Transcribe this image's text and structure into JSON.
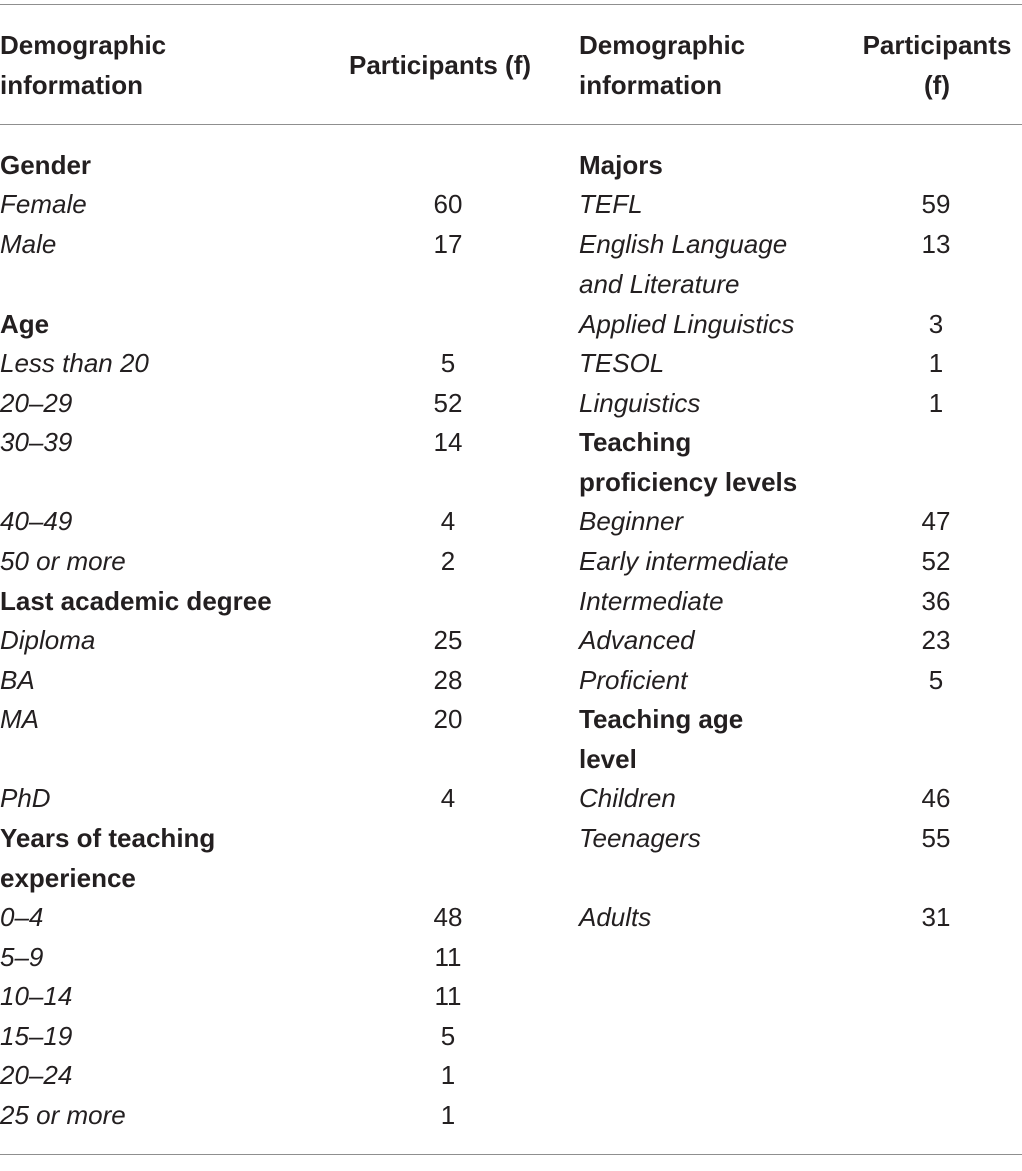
{
  "header": {
    "left_col1": [
      "Demographic",
      "information"
    ],
    "left_col2": "Participants (f)",
    "right_col1": [
      "Demographic",
      "information"
    ],
    "right_col2": [
      "Participants",
      "(f)"
    ]
  },
  "left": {
    "gender": {
      "title": "Gender",
      "rows": [
        {
          "label": "Female",
          "value": "60"
        },
        {
          "label": "Male",
          "value": "17"
        }
      ]
    },
    "age": {
      "title": "Age",
      "rows": [
        {
          "label": "Less than 20",
          "value": "5"
        },
        {
          "label": "20–29",
          "value": "52"
        },
        {
          "label": "30–39",
          "value": "14"
        },
        {
          "label": "40–49",
          "value": "4"
        },
        {
          "label": "50 or more",
          "value": "2"
        }
      ]
    },
    "degree": {
      "title": "Last academic degree",
      "rows": [
        {
          "label": "Diploma",
          "value": "25"
        },
        {
          "label": "BA",
          "value": "28"
        },
        {
          "label": "MA",
          "value": "20"
        },
        {
          "label": "PhD",
          "value": "4"
        }
      ]
    },
    "experience": {
      "title": [
        "Years of teaching",
        "experience"
      ],
      "rows": [
        {
          "label": "0–4",
          "value": "48"
        },
        {
          "label": "5–9",
          "value": "11"
        },
        {
          "label": "10–14",
          "value": "11"
        },
        {
          "label": "15–19",
          "value": "5"
        },
        {
          "label": "20–24",
          "value": "1"
        },
        {
          "label": "25 or more",
          "value": "1"
        }
      ]
    }
  },
  "right": {
    "majors": {
      "title": "Majors",
      "rows": [
        {
          "label": "TEFL",
          "value": "59"
        },
        {
          "label": [
            "English Language",
            "and Literature"
          ],
          "value": "13"
        },
        {
          "label": "Applied Linguistics",
          "value": "3"
        },
        {
          "label": "TESOL",
          "value": "1"
        },
        {
          "label": "Linguistics",
          "value": "1"
        }
      ]
    },
    "proficiency": {
      "title": [
        "Teaching",
        "proficiency levels"
      ],
      "rows": [
        {
          "label": "Beginner",
          "value": "47"
        },
        {
          "label": "Early intermediate",
          "value": "52"
        },
        {
          "label": "Intermediate",
          "value": "36"
        },
        {
          "label": "Advanced",
          "value": "23"
        },
        {
          "label": "Proficient",
          "value": "5"
        }
      ]
    },
    "age_level": {
      "title": [
        "Teaching age",
        "level"
      ],
      "rows": [
        {
          "label": "Children",
          "value": "46"
        },
        {
          "label": "Teenagers",
          "value": "55"
        },
        {
          "label": "Adults",
          "value": "31"
        }
      ]
    }
  }
}
